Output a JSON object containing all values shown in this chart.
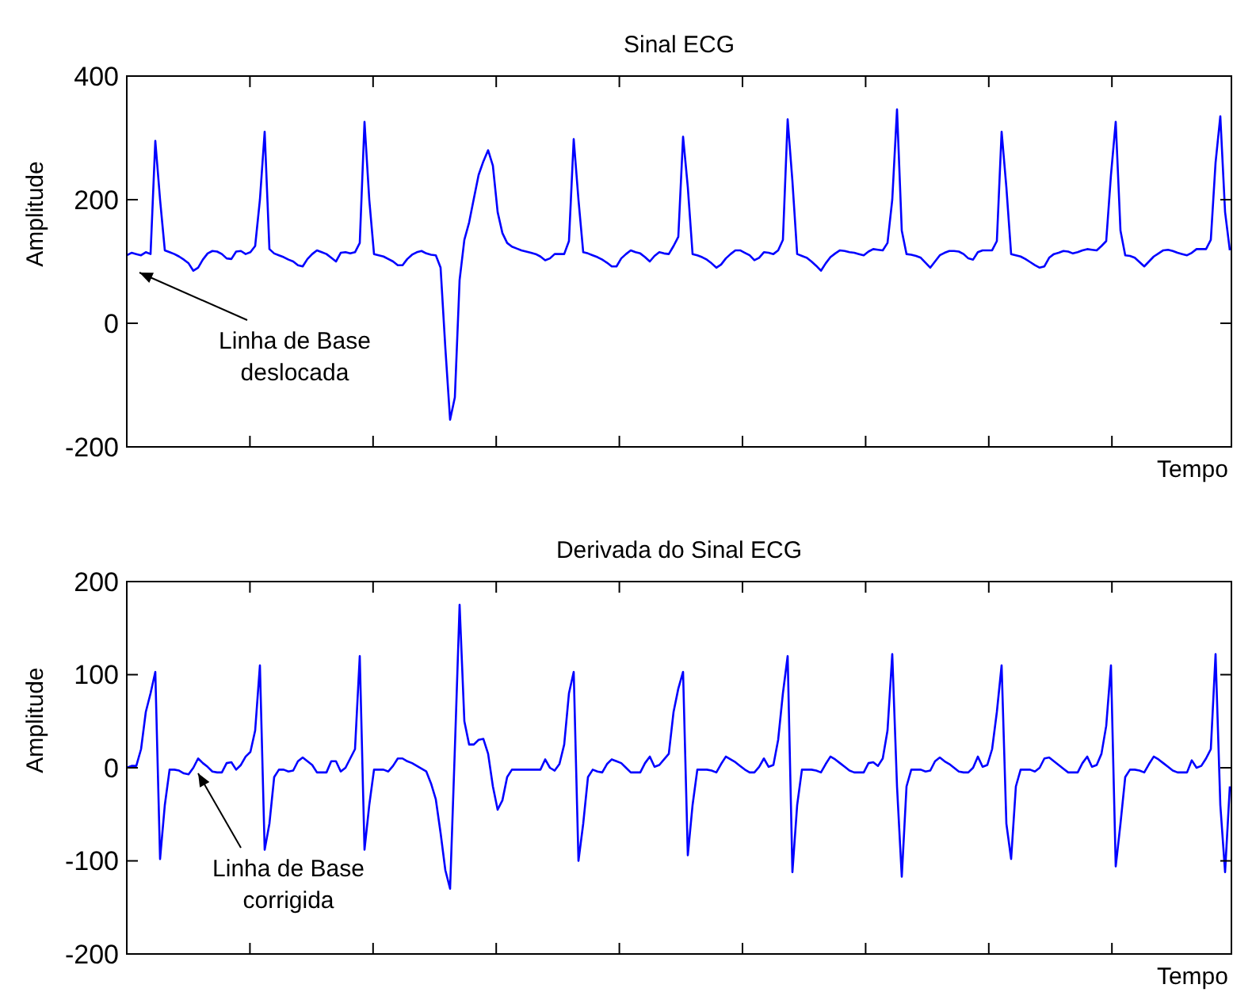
{
  "chart_data": [
    {
      "type": "line",
      "title": "Sinal ECG",
      "xlabel": "Tempo",
      "ylabel": "Amplitude",
      "ylim": [
        -200,
        400
      ],
      "yticks": [
        -200,
        0,
        200,
        400
      ],
      "tick_labels": "y",
      "grid": false,
      "marker": "none",
      "line_style": "solid",
      "annotations": [
        "Linha de Base\ndeslocada"
      ],
      "categories": [
        null,
        null,
        null,
        null,
        null,
        null,
        null,
        null,
        null,
        null,
        null,
        null,
        null,
        null,
        null,
        null,
        null,
        null,
        null,
        null,
        null,
        null,
        null,
        null,
        null,
        null,
        null,
        null,
        null,
        null,
        null,
        null,
        null,
        null,
        null,
        null,
        null,
        null,
        null,
        null,
        null,
        null,
        null,
        null,
        null,
        null,
        null,
        null,
        null,
        null,
        null,
        null,
        null,
        null,
        null,
        null,
        null,
        null,
        null,
        null,
        null,
        null,
        null,
        null,
        null,
        null,
        null,
        null,
        null,
        null,
        null,
        null,
        null,
        null,
        null,
        null,
        null,
        null,
        null,
        null,
        null,
        null,
        null,
        null,
        null,
        null,
        null,
        null,
        null,
        null,
        null,
        null,
        null,
        null,
        null,
        null,
        null,
        null,
        null,
        null,
        null,
        null,
        null,
        null,
        null,
        null,
        null,
        null,
        null,
        null,
        null,
        null,
        null,
        null,
        null,
        null,
        null,
        null,
        null,
        null,
        null,
        null,
        null,
        null,
        null,
        null,
        null,
        null,
        null,
        null,
        null,
        null,
        null,
        null,
        null,
        null,
        null,
        null,
        null,
        null,
        null,
        null,
        null,
        null,
        null,
        null,
        null,
        null,
        null,
        null,
        null,
        null,
        null,
        null,
        null,
        null,
        null,
        null,
        null,
        null,
        null,
        null,
        null,
        null,
        null,
        null,
        null,
        null,
        null,
        null,
        null,
        null,
        null,
        null,
        null,
        null,
        null,
        null,
        null,
        null,
        null,
        null,
        null,
        null,
        null,
        null,
        null,
        null,
        null,
        null,
        null,
        null,
        null,
        null,
        null,
        null,
        null,
        null,
        null,
        null,
        null,
        null,
        null,
        null,
        null,
        null,
        null,
        null,
        null,
        null,
        null,
        null,
        null,
        null,
        null,
        null,
        null,
        null,
        null,
        null,
        null,
        null,
        null,
        null,
        null,
        null,
        null,
        null,
        null,
        null,
        null,
        null,
        null
      ],
      "series": [
        {
          "color": "#0000ff",
          "values": [
            110,
            114,
            112,
            110,
            115,
            112,
            295,
            200,
            118,
            115,
            112,
            108,
            103,
            97,
            85,
            90,
            103,
            113,
            117,
            116,
            112,
            105,
            104,
            116,
            117,
            112,
            115,
            125,
            200,
            310,
            120,
            113,
            110,
            107,
            103,
            100,
            94,
            92,
            104,
            112,
            118,
            115,
            112,
            106,
            100,
            114,
            115,
            113,
            115,
            130,
            326,
            200,
            112,
            110,
            108,
            104,
            100,
            94,
            94,
            104,
            111,
            115,
            117,
            113,
            111,
            110,
            90,
            -40,
            -156,
            -120,
            70,
            135,
            163,
            202,
            240,
            262,
            280,
            255,
            180,
            146,
            130,
            124,
            121,
            118,
            116,
            114,
            112,
            108,
            102,
            105,
            112,
            112,
            112,
            133,
            298,
            200,
            115,
            113,
            110,
            107,
            103,
            98,
            92,
            92,
            105,
            112,
            118,
            115,
            113,
            107,
            100,
            109,
            115,
            113,
            112,
            125,
            140,
            302,
            220,
            112,
            110,
            107,
            103,
            97,
            90,
            95,
            105,
            112,
            118,
            118,
            114,
            110,
            102,
            106,
            115,
            114,
            112,
            118,
            135,
            330,
            230,
            112,
            109,
            106,
            100,
            93,
            85,
            97,
            107,
            113,
            118,
            117,
            115,
            114,
            112,
            110,
            116,
            120,
            119,
            118,
            130,
            200,
            346,
            150,
            112,
            111,
            109,
            106,
            98,
            90,
            100,
            110,
            114,
            117,
            117,
            116,
            112,
            105,
            103,
            115,
            118,
            118,
            118,
            133,
            310,
            220,
            112,
            110,
            108,
            104,
            99,
            94,
            90,
            92,
            106,
            112,
            114,
            117,
            116,
            113,
            115,
            118,
            120,
            119,
            118,
            125,
            133,
            240,
            326,
            150,
            110,
            109,
            106,
            99,
            92,
            100,
            108,
            113,
            118,
            119,
            117,
            114,
            112,
            110,
            114,
            120,
            120,
            120,
            135,
            260,
            335,
            180,
            118
          ]
        }
      ]
    },
    {
      "type": "line",
      "title": "Derivada do Sinal ECG",
      "xlabel": "Tempo",
      "ylabel": "Amplitude",
      "ylim": [
        -200,
        200
      ],
      "yticks": [
        -200,
        -100,
        0,
        100,
        200
      ],
      "tick_labels": "y",
      "grid": false,
      "marker": "none",
      "line_style": "solid",
      "annotations": [
        "Linha de Base\ncorrigida"
      ],
      "categories": [
        null,
        null,
        null,
        null,
        null,
        null,
        null,
        null,
        null,
        null,
        null,
        null,
        null,
        null,
        null,
        null,
        null,
        null,
        null,
        null,
        null,
        null,
        null,
        null,
        null,
        null,
        null,
        null,
        null,
        null,
        null,
        null,
        null,
        null,
        null,
        null,
        null,
        null,
        null,
        null,
        null,
        null,
        null,
        null,
        null,
        null,
        null,
        null,
        null,
        null,
        null,
        null,
        null,
        null,
        null,
        null,
        null,
        null,
        null,
        null,
        null,
        null,
        null,
        null,
        null,
        null,
        null,
        null,
        null,
        null,
        null,
        null,
        null,
        null,
        null,
        null,
        null,
        null,
        null,
        null,
        null,
        null,
        null,
        null,
        null,
        null,
        null,
        null,
        null,
        null,
        null,
        null,
        null,
        null,
        null,
        null,
        null,
        null,
        null,
        null,
        null,
        null,
        null,
        null,
        null,
        null,
        null,
        null,
        null,
        null,
        null,
        null,
        null,
        null,
        null,
        null,
        null,
        null,
        null,
        null,
        null,
        null,
        null,
        null,
        null,
        null,
        null,
        null,
        null,
        null,
        null,
        null,
        null,
        null,
        null,
        null,
        null,
        null,
        null,
        null,
        null,
        null,
        null,
        null,
        null,
        null,
        null,
        null,
        null,
        null,
        null,
        null,
        null,
        null,
        null,
        null,
        null,
        null,
        null,
        null,
        null,
        null,
        null,
        null,
        null,
        null,
        null,
        null,
        null,
        null,
        null,
        null,
        null,
        null,
        null,
        null,
        null,
        null,
        null,
        null,
        null,
        null,
        null,
        null,
        null,
        null,
        null,
        null,
        null,
        null,
        null,
        null,
        null,
        null,
        null,
        null,
        null,
        null,
        null,
        null,
        null,
        null,
        null,
        null,
        null,
        null,
        null,
        null,
        null,
        null,
        null,
        null,
        null,
        null,
        null,
        null,
        null,
        null,
        null,
        null,
        null,
        null,
        null,
        null,
        null,
        null,
        null,
        null,
        null,
        null,
        null,
        null,
        null
      ],
      "series": [
        {
          "color": "#0000ff",
          "values": [
            0,
            2,
            2,
            20,
            60,
            80,
            103,
            -98,
            -40,
            -2,
            -2,
            -3,
            -6,
            -7,
            0,
            10,
            5,
            1,
            -4,
            -5,
            -5,
            5,
            6,
            -2,
            3,
            12,
            17,
            40,
            110,
            -88,
            -60,
            -10,
            -2,
            -2,
            -4,
            -3,
            7,
            11,
            7,
            3,
            -5,
            -5,
            -5,
            7,
            7,
            -4,
            0,
            10,
            20,
            120,
            -88,
            -40,
            -2,
            -2,
            -2,
            -4,
            2,
            10,
            10,
            7,
            5,
            2,
            -1,
            -4,
            -17,
            -34,
            -70,
            -110,
            -130,
            20,
            175,
            50,
            25,
            25,
            30,
            31,
            15,
            -20,
            -45,
            -35,
            -10,
            -2,
            -2,
            -2,
            -2,
            -2,
            -2,
            -2,
            9,
            0,
            -3,
            4,
            25,
            80,
            103,
            -100,
            -60,
            -10,
            -2,
            -4,
            -5,
            4,
            9,
            7,
            5,
            0,
            -5,
            -5,
            -5,
            5,
            12,
            1,
            3,
            9,
            15,
            60,
            85,
            103,
            -94,
            -40,
            -2,
            -2,
            -2,
            -3,
            -5,
            4,
            12,
            9,
            6,
            2,
            -2,
            -5,
            -5,
            1,
            10,
            1,
            3,
            30,
            80,
            120,
            -112,
            -40,
            -2,
            -2,
            -2,
            -3,
            -5,
            4,
            12,
            9,
            5,
            1,
            -3,
            -5,
            -5,
            -5,
            5,
            6,
            2,
            10,
            40,
            122,
            -20,
            -117,
            -20,
            -2,
            -2,
            -2,
            -4,
            -3,
            7,
            11,
            7,
            4,
            0,
            -4,
            -5,
            -5,
            0,
            12,
            1,
            3,
            20,
            60,
            110,
            -60,
            -98,
            -20,
            -2,
            -2,
            -2,
            -4,
            0,
            10,
            11,
            7,
            3,
            -1,
            -5,
            -5,
            -5,
            5,
            12,
            1,
            3,
            15,
            45,
            110,
            -106,
            -60,
            -10,
            -2,
            -2,
            -3,
            -5,
            4,
            12,
            9,
            5,
            1,
            -3,
            -5,
            -5,
            -5,
            8,
            0,
            2,
            10,
            20,
            122,
            -40,
            -112,
            -20
          ]
        }
      ]
    }
  ]
}
